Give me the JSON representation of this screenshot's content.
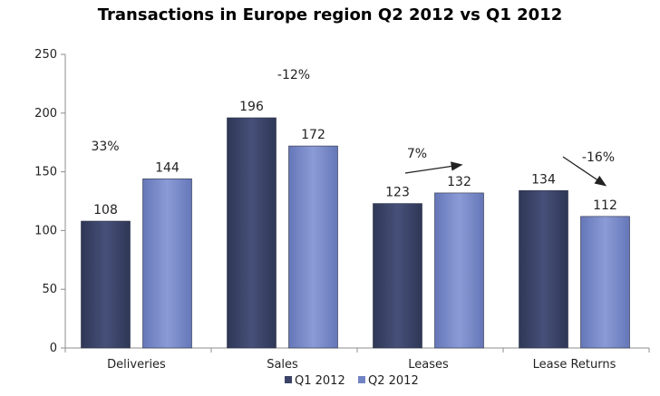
{
  "chart_data": {
    "type": "bar",
    "title": "Transactions in Europe region Q2 2012 vs Q1 2012",
    "categories": [
      "Deliveries",
      "Sales",
      "Leases",
      "Lease Returns"
    ],
    "series": [
      {
        "name": "Q1 2012",
        "values": [
          108,
          196,
          123,
          134
        ],
        "color": "#3b4466"
      },
      {
        "name": "Q2 2012",
        "values": [
          144,
          172,
          132,
          112
        ],
        "color": "#7384c4"
      }
    ],
    "ylim": [
      0,
      250
    ],
    "yticks": [
      0,
      50,
      100,
      150,
      200,
      250
    ],
    "legend_position": "bottom",
    "grid": false,
    "annotations": [
      {
        "category": "Deliveries",
        "text": "33%",
        "arrow": "none"
      },
      {
        "category": "Sales",
        "text": "-12%",
        "arrow": "none"
      },
      {
        "category": "Leases",
        "text": "7%",
        "arrow": "up"
      },
      {
        "category": "Lease Returns",
        "text": "-16%",
        "arrow": "down"
      }
    ]
  }
}
